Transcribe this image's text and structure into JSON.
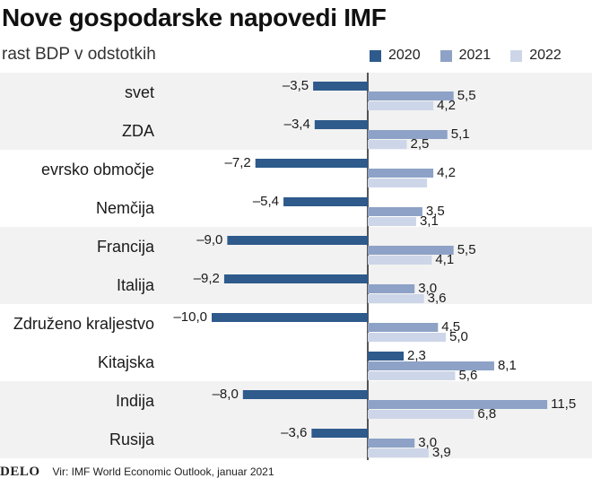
{
  "header": {
    "title": "Nove gospodarske napovedi IMF",
    "subtitle": "rast BDP v odstotkih"
  },
  "footer": {
    "brand": "DELO",
    "source": "Vir:  IMF World Economic Outlook, januar 2021"
  },
  "colors": {
    "s2020": "#2e5a8c",
    "s2021": "#8da2c6",
    "s2022": "#cdd6e8",
    "band": "#f2f2f2"
  },
  "chart_data": {
    "type": "bar",
    "orientation": "horizontal",
    "categories": [
      "svet",
      "ZDA",
      "evrsko območje",
      "Nemčija",
      "Francija",
      "Italija",
      "Združeno kraljestvo",
      "Kitajska",
      "Indija",
      "Rusija"
    ],
    "series": [
      {
        "name": "2020",
        "values": [
          -3.5,
          -3.4,
          -7.2,
          -5.4,
          -9.0,
          -9.2,
          -10.0,
          2.3,
          -8.0,
          -3.6
        ],
        "labels": [
          "–3,5",
          "–3,4",
          "–7,2",
          "–5,4",
          "–9,0",
          "–9,2",
          "–10,0",
          "2,3",
          "–8,0",
          "–3,6"
        ]
      },
      {
        "name": "2021",
        "values": [
          5.5,
          5.1,
          4.2,
          3.5,
          5.5,
          3.0,
          4.5,
          8.1,
          11.5,
          3.0
        ],
        "labels": [
          "5,5",
          "5,1",
          "4,2",
          "3,5",
          "5,5",
          "3,0",
          "4,5",
          "8,1",
          "11,5",
          "3,0"
        ]
      },
      {
        "name": "2022",
        "values": [
          4.2,
          2.5,
          null,
          3.1,
          4.1,
          3.6,
          5.0,
          5.6,
          6.8,
          3.9
        ],
        "labels": [
          "4,2",
          "2,5",
          "",
          "3,1",
          "4,1",
          "3,6",
          "5,0",
          "5,6",
          "6,8",
          "3,9"
        ]
      }
    ],
    "xlim": [
      -12,
      13
    ],
    "legend_position": "top-right",
    "banding": "alternating pairs of rows"
  }
}
